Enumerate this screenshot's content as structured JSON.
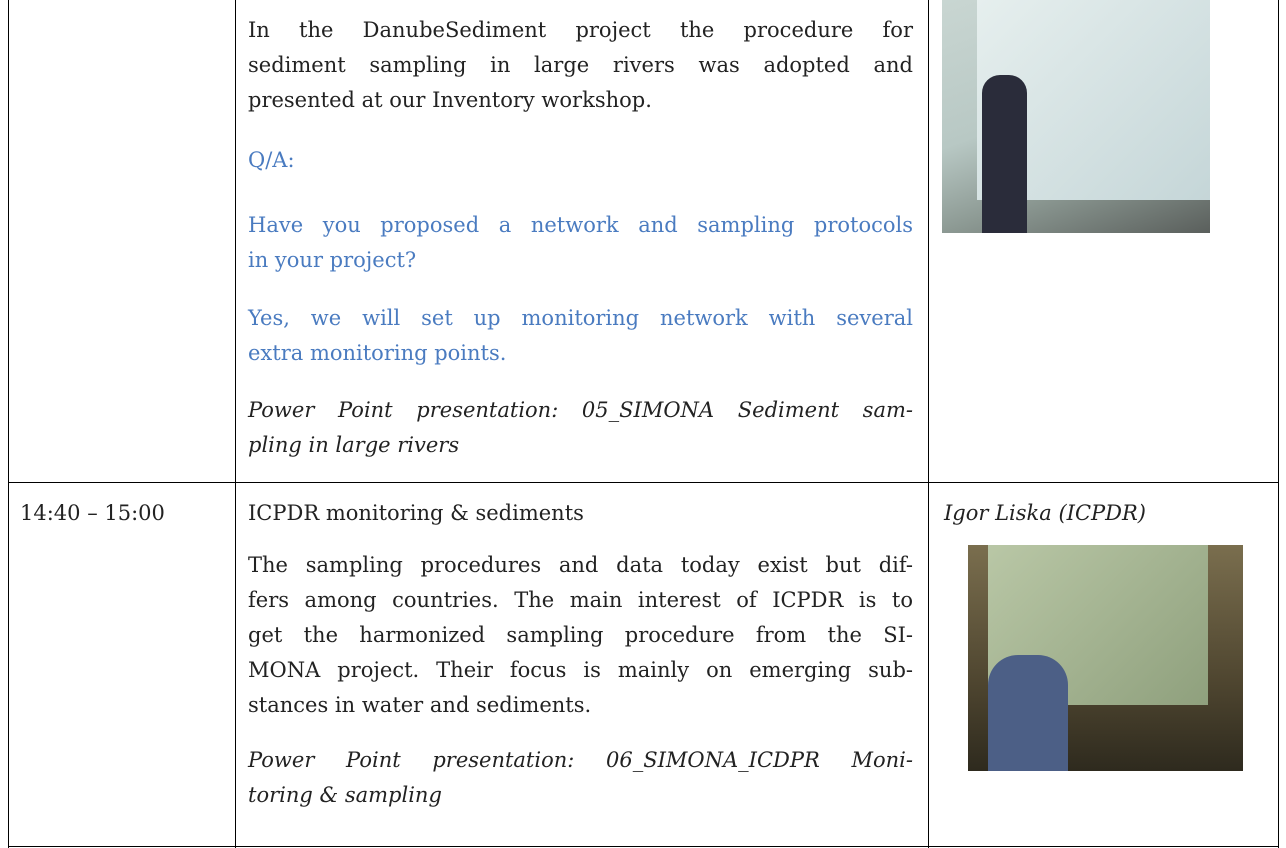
{
  "rows": [
    {
      "paragraphs": [
        {
          "style": "normal",
          "lines": [
            "In the DanubeSediment project the procedure for",
            "sediment sampling in large rivers was adopted and",
            "presented at our Inventory workshop."
          ]
        },
        {
          "style": "blue",
          "lines": [
            "Q/A:"
          ]
        },
        {
          "style": "blue",
          "lines": [
            "Have you proposed a network and sampling protocols",
            "in your project?"
          ]
        },
        {
          "style": "blue",
          "lines": [
            "Yes, we will set up monitoring network with several",
            "extra monitoring points."
          ]
        },
        {
          "style": "italic",
          "lines": [
            "Power Point presentation: 05_SIMONA Sediment sam-",
            "pling in large rivers"
          ]
        }
      ]
    },
    {
      "time": "14:40 – 15:00",
      "title": "ICPDR monitoring & sediments",
      "speaker": "Igor Liska (ICPDR)",
      "paragraphs": [
        {
          "style": "normal",
          "lines": [
            "The sampling procedures and data today exist but dif-",
            "fers among countries. The main interest of ICPDR is to",
            "get the harmonized sampling procedure from the SI-",
            "MONA project. Their focus is mainly on emerging sub-",
            "stances in water and sediments."
          ]
        },
        {
          "style": "italic",
          "lines": [
            "Power Point presentation: 06_SIMONA_ICDPR Moni-",
            "toring & sampling"
          ]
        }
      ]
    }
  ]
}
